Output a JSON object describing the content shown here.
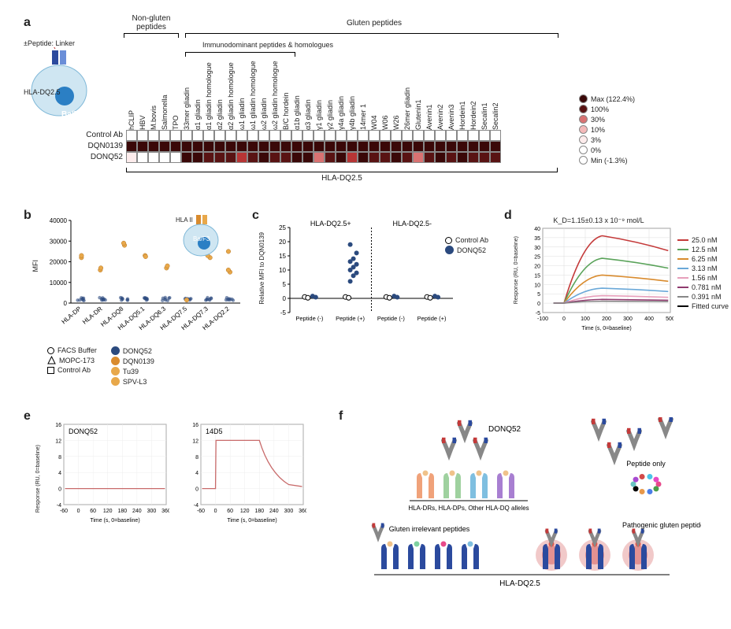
{
  "panel_a": {
    "label": "a",
    "schematic": {
      "top_text": "±Peptide: Linker",
      "hla_text": "HLA-DQ2.5",
      "cell_text": "Ba/F3"
    },
    "groups": {
      "nongluten": "Non-gluten peptides",
      "gluten": "Gluten peptides",
      "immuno": "Immunodominant peptides & homologues"
    },
    "columns": [
      "hCLIP",
      "HBV",
      "M.bovis",
      "Salmonella",
      "TPO",
      "33mer gliadin",
      "α1 gliadin",
      "α1 gliadin homologue",
      "α2 gliadin",
      "α2 gliadin homologue",
      "ω1 gliadin",
      "ω1 gliadin homologue",
      "ω2 gliadin",
      "ω2 gliadin homologue",
      "B/C hordein",
      "α1b gliadin",
      "α3 gliadin",
      "γ1 gliadin",
      "γ2 gliadin",
      "γ4a gliadin",
      "γ4b gliadin",
      "14mer 1",
      "W04",
      "W06",
      "W26",
      "26mer gliadin",
      "Glutenin1",
      "Avenin1",
      "Avenin2",
      "Avenin3",
      "Hordein1",
      "Hordein2",
      "Secalin1",
      "Secalin2"
    ],
    "rows": [
      "Control Ab",
      "DQN0139",
      "DONQ52"
    ],
    "colors": [
      "#ffffff",
      "#ffffff",
      "#fdecec",
      "#f4b9b9",
      "#d97272",
      "#b73535",
      "#591313",
      "#3a0808"
    ],
    "values": [
      [
        0,
        0,
        0,
        0,
        0,
        0,
        0,
        0,
        0,
        0,
        0,
        0,
        0,
        0,
        0,
        0,
        0,
        0,
        0,
        0,
        0,
        0,
        0,
        0,
        0,
        0,
        0,
        0,
        0,
        0,
        0,
        0,
        0,
        0
      ],
      [
        7,
        7,
        7,
        7,
        7,
        7,
        7,
        7,
        7,
        7,
        7,
        7,
        7,
        7,
        7,
        7,
        7,
        7,
        7,
        7,
        7,
        7,
        7,
        7,
        7,
        7,
        7,
        7,
        7,
        7,
        7,
        7,
        7,
        7
      ],
      [
        2,
        1,
        1,
        1,
        1,
        7,
        7,
        6,
        6,
        6,
        5,
        6,
        7,
        6,
        6,
        7,
        7,
        4,
        6,
        7,
        5,
        7,
        6,
        6,
        7,
        6,
        4,
        6,
        7,
        6,
        7,
        6,
        6,
        6
      ]
    ],
    "bottom_label": "HLA-DQ2.5",
    "legend_items": [
      {
        "label": "Max (122.4%)",
        "color": "#3a0808"
      },
      {
        "label": "100%",
        "color": "#591313"
      },
      {
        "label": "30%",
        "color": "#d97272"
      },
      {
        "label": "10%",
        "color": "#f4b9b9"
      },
      {
        "label": "3%",
        "color": "#fdecec"
      },
      {
        "label": "0%",
        "color": "#ffffff"
      },
      {
        "label": "Min (-1.3%)",
        "color": "#ffffff"
      }
    ]
  },
  "panel_b": {
    "label": "b",
    "ylabel": "MFI",
    "ymax": 40000,
    "ytick": 10000,
    "categories": [
      "HLA-DP",
      "HLA-DR",
      "HLA-DQ8",
      "HLA-DQ5.1",
      "HLA-DQ6.3",
      "HLA-DQ7.5",
      "HLA-DQ7.3",
      "HLA-DQ2.2"
    ],
    "schem": {
      "text1": "HLA II",
      "text2": "Ba/F3"
    },
    "series": [
      {
        "name": "FACS Buffer",
        "marker": "circle",
        "stroke": "#000",
        "fill": "none"
      },
      {
        "name": "MOPC-173",
        "marker": "triangle",
        "stroke": "#000",
        "fill": "none"
      },
      {
        "name": "Control Ab",
        "marker": "square",
        "stroke": "#000",
        "fill": "none"
      },
      {
        "name": "DONQ52",
        "marker": "circle",
        "stroke": "#2b4a7e",
        "fill": "#2b4a7e"
      },
      {
        "name": "DQN0139",
        "marker": "circle",
        "stroke": "#d98b2e",
        "fill": "#d98b2e"
      },
      {
        "name": "Tu39",
        "marker": "circle",
        "stroke": "#e8a84a",
        "fill": "#e8a84a"
      },
      {
        "name": "SPV-L3",
        "marker": "circle",
        "stroke": "#e8a84a",
        "fill": "#e8a84a"
      }
    ],
    "points": {
      "high_orange": [
        [
          0,
          22000
        ],
        [
          0,
          23000
        ],
        [
          1,
          16000
        ],
        [
          1,
          17000
        ],
        [
          2,
          28000
        ],
        [
          2,
          29000
        ],
        [
          3,
          23000
        ],
        [
          3,
          22500
        ],
        [
          4,
          17000
        ],
        [
          4,
          18000
        ],
        [
          5,
          1500
        ],
        [
          6,
          22000
        ],
        [
          6,
          23000
        ],
        [
          7,
          15000
        ],
        [
          7,
          25000
        ],
        [
          7,
          16000
        ]
      ],
      "low_cluster_y": 1200
    }
  },
  "panel_c": {
    "label": "c",
    "ylabel": "Relative MFI to DQN0139",
    "ylim": [
      -5,
      25
    ],
    "ytick": 5,
    "group_labels": {
      "left": "HLA-DQ2.5+",
      "right": "HLA-DQ2.5-"
    },
    "xcats": [
      "Peptide (-)",
      "Peptide (+)",
      "Peptide (-)",
      "Peptide (+)"
    ],
    "legend": [
      {
        "label": "Control Ab",
        "fill": "#ffffff",
        "stroke": "#000"
      },
      {
        "label": "DONQ52",
        "fill": "#2b4a7e",
        "stroke": "#2b4a7e"
      }
    ],
    "donq52_peptide_plus_vals": [
      6,
      8,
      9,
      10,
      11,
      12,
      13,
      14,
      16,
      19
    ]
  },
  "panel_d": {
    "label": "d",
    "kd_text": "K_D=1.15±0.13 x 10⁻⁹ mol/L",
    "xlabel": "Time (s, 0=baseline)",
    "ylabel": "Response (RU, 0=baseline)",
    "xlim": [
      -100,
      500
    ],
    "xtick": 100,
    "ylim": [
      -5,
      40
    ],
    "ytick": 5,
    "series": [
      {
        "label": "25.0 nM",
        "color": "#c43a3a",
        "peak": 36
      },
      {
        "label": "12.5 nM",
        "color": "#5aa35a",
        "peak": 24
      },
      {
        "label": "6.25 nM",
        "color": "#d98b2e",
        "peak": 15
      },
      {
        "label": "3.13 nM",
        "color": "#6aa8d8",
        "peak": 8
      },
      {
        "label": "1.56 nM",
        "color": "#e79fbb",
        "peak": 4
      },
      {
        "label": "0.781 nM",
        "color": "#8f3a6e",
        "peak": 2
      },
      {
        "label": "0.391 nM",
        "color": "#888888",
        "peak": 1
      },
      {
        "label": "Fitted curve",
        "color": "#000000",
        "peak": 0
      }
    ]
  },
  "panel_e": {
    "label": "e",
    "xlabel": "Time (s, 0=baseline)",
    "ylabel": "Response (RU, 0=baseline)",
    "xlim": [
      -60,
      360
    ],
    "xtick": 60,
    "ylim": [
      -4,
      16
    ],
    "ytick": 4,
    "subplots": [
      {
        "title": "DONQ52",
        "trace_y": 0,
        "color": "#c86a6a"
      },
      {
        "title": "14D5",
        "trace_y": 12,
        "color": "#c86a6a"
      }
    ]
  },
  "panel_f": {
    "label": "f",
    "labels": {
      "donq52": "DONQ52",
      "hla_other": "HLA-DRs, HLA-DPs, Other HLA-DQ alleles",
      "gluten_irrelevant": "Gluten irrelevant peptides",
      "pathogenic": "Pathogenic gluten peptides",
      "peptide_only": "Peptide only",
      "bottom": "HLA-DQ2.5"
    },
    "hla_colors": [
      "#f0a27a",
      "#9fd19f",
      "#7fbfe0",
      "#a87fd1"
    ],
    "dq25_color": "#2b4a9e",
    "peptide_colors": [
      "#e84a8a",
      "#4a9e4a",
      "#4a7ee8",
      "#e8984a",
      "#000",
      "#6ac4c4",
      "#a84ad1",
      "#d14a4a",
      "#4ac4e8",
      "#e84ac4"
    ]
  }
}
